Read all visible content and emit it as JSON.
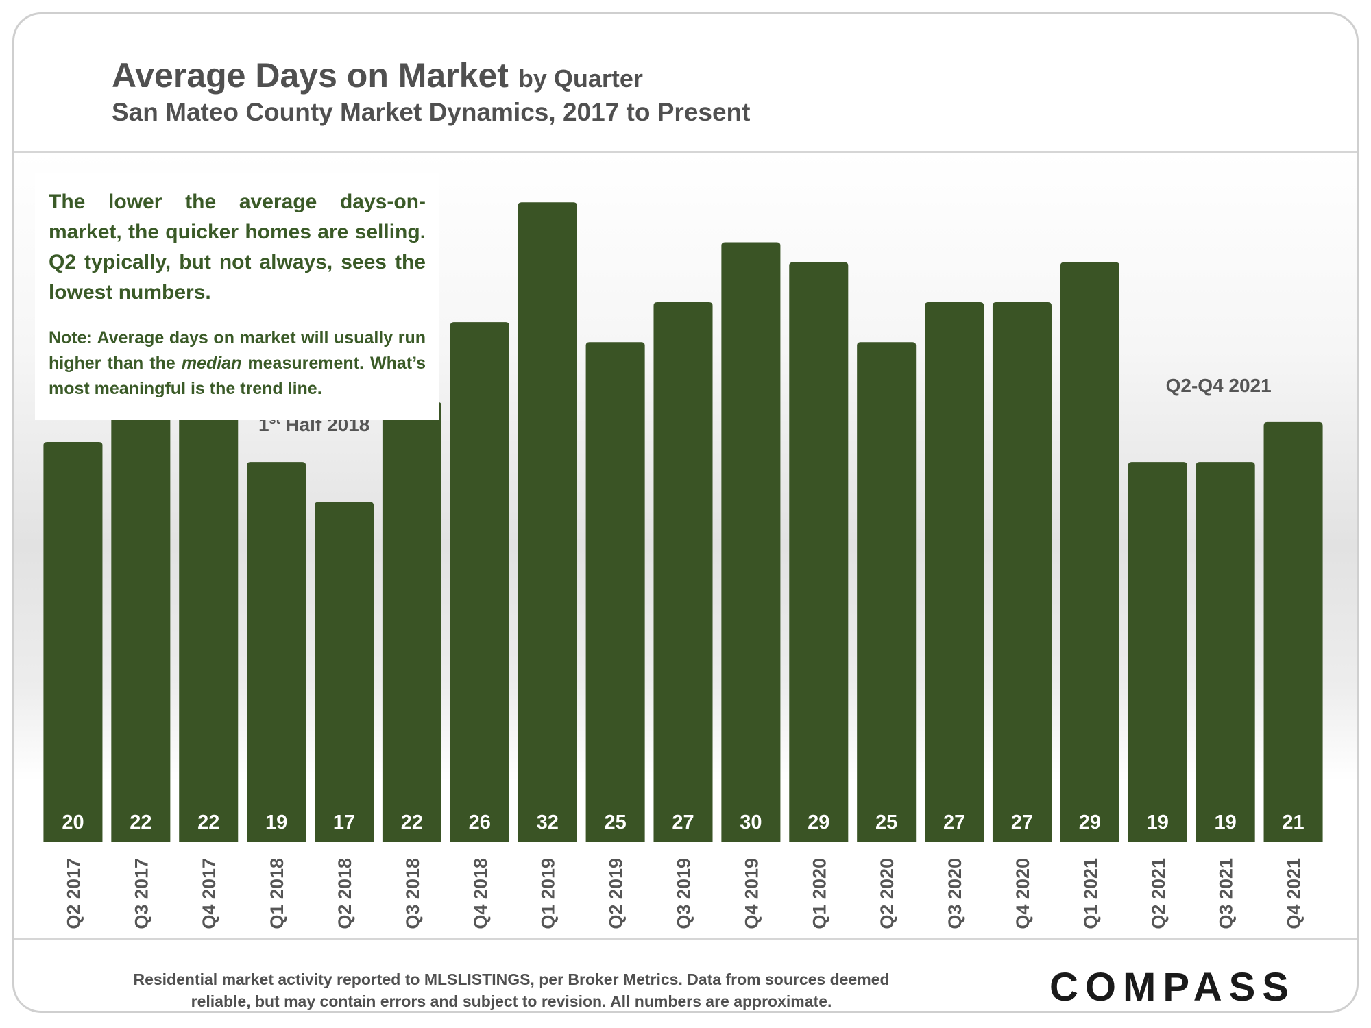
{
  "header": {
    "title": "Average Days on Market",
    "title_suffix": "by Quarter",
    "subtitle": "San Mateo County Market Dynamics, 2017 to Present"
  },
  "info_box": {
    "main_text": "The lower the average days-on-market, the quicker homes are selling. Q2 typically, but not always, sees the lowest numbers.",
    "note_before": "Note: Average days on market will usually run higher than the ",
    "note_emphasis": "median",
    "note_after": " measurement. What’s most meaningful is the trend line."
  },
  "colors": {
    "bar": "#3a5425",
    "info_text": "#3a5a27",
    "title_text": "#505050",
    "label_text": "#555555",
    "value_text": "#ffffff"
  },
  "chart_data": {
    "type": "bar",
    "categories": [
      "Q2 2017",
      "Q3 2017",
      "Q4 2017",
      "Q1 2018",
      "Q2 2018",
      "Q3 2018",
      "Q4 2018",
      "Q1 2019",
      "Q2 2019",
      "Q3 2019",
      "Q4 2019",
      "Q1 2020",
      "Q2 2020",
      "Q3 2020",
      "Q4 2020",
      "Q1 2021",
      "Q2 2021",
      "Q3 2021",
      "Q4 2021"
    ],
    "values": [
      20,
      22,
      22,
      19,
      17,
      22,
      26,
      32,
      25,
      27,
      30,
      29,
      25,
      27,
      27,
      29,
      19,
      19,
      21
    ],
    "title": "Average Days on Market by Quarter",
    "xlabel": "",
    "ylabel": "",
    "ylim": [
      0,
      33
    ],
    "data_labels": true,
    "grid": false,
    "legend": "none",
    "annotations": [
      {
        "text": "Half 2018",
        "prefix": "1",
        "superscript": "st",
        "near_category": "Q1 2018"
      },
      {
        "text": "Q2-Q4 2021",
        "prefix": "",
        "superscript": "",
        "near_category": "Q3 2021"
      }
    ]
  },
  "footer": {
    "note": "Residential market activity reported to MLSLISTINGS, per Broker Metrics. Data from sources deemed reliable, but may contain errors and subject to revision. All numbers are approximate.",
    "brand": "COMPASS"
  }
}
